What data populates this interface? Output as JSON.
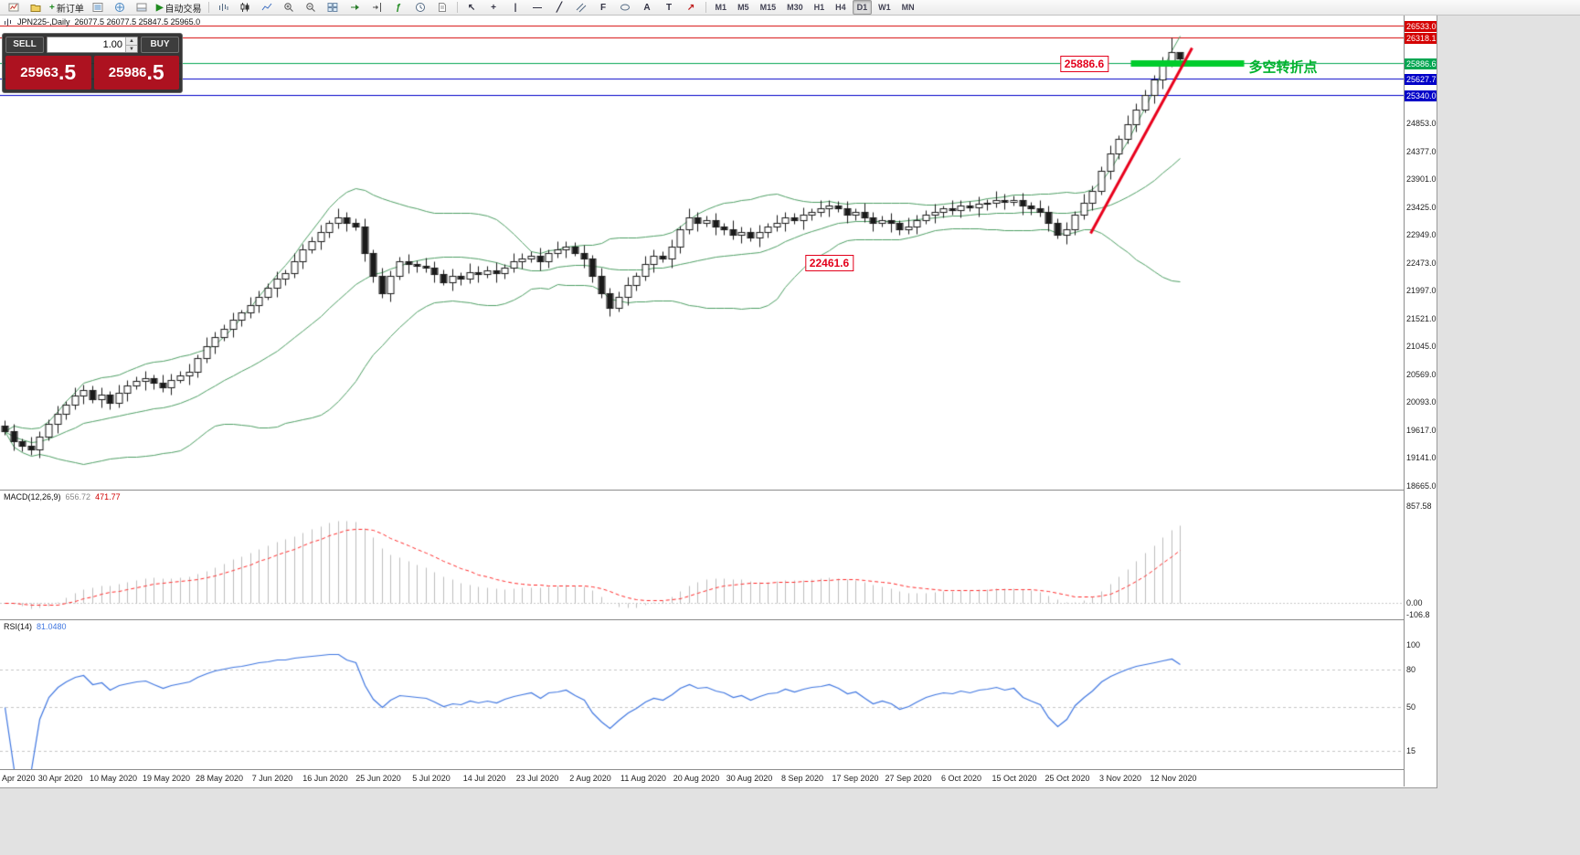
{
  "colors": {
    "toolbar_bg": "#f2f2f2",
    "chart_bg": "#ffffff",
    "candle_up_fill": "#ffffff",
    "candle_down_fill": "#1a1a1a",
    "candle_outline": "#1a1a1a",
    "bollinger": "#4d9e63",
    "resistance_red": "#d40000",
    "support_blue": "#0000c8",
    "signal_green": "#00a651",
    "bar_green": "#00cc2c",
    "trend_red": "#e8001c",
    "macd_hist": "#bdbdbd",
    "macd_signal": "#ff2a2a",
    "rsi_line": "#3f76e0",
    "level_dash": "#c4c4c4",
    "sell_bg": "#ad1220",
    "buy_bg": "#ad1220"
  },
  "toolbar": {
    "new_order_label": "新订单",
    "autotrading_label": "自动交易",
    "timeframes": [
      "M1",
      "M5",
      "M15",
      "M30",
      "H1",
      "H4",
      "D1",
      "W1",
      "MN"
    ],
    "active_timeframe": "D1",
    "glyphs": {
      "plus": "+",
      "play": "▶",
      "zoom_in": "+",
      "zoom_out": "−",
      "function": "ƒ",
      "cursor": "↖",
      "crosshair": "+",
      "vertical_line": "|",
      "horizontal_line": "—",
      "trend_line": "╱",
      "fibonacci": "F",
      "text": "A",
      "label": "T",
      "arrow": "↗"
    }
  },
  "chart": {
    "symbol_period": "JPN225-,Daily",
    "ohlc_text": "26077.5 26077.5 25847.5 25965.0"
  },
  "one_click": {
    "sell_label": "SELL",
    "buy_label": "BUY",
    "volume": "1.00",
    "sell_price_main": "25963",
    "sell_price_frac": ".5",
    "buy_price_main": "25986",
    "buy_price_frac": ".5"
  },
  "chart_data": {
    "type": "candlestick",
    "symbol": "JPN225-",
    "timeframe": "Daily",
    "ohlc_display": {
      "open": 26077.5,
      "high": 26077.5,
      "low": 25847.5,
      "close": 25965.0
    },
    "y_axis": {
      "min": 18600,
      "max": 26700,
      "tick_labels": [
        "24853.0",
        "24377.0",
        "23901.0",
        "23425.0",
        "22949.0",
        "22473.0",
        "21997.0",
        "21521.0",
        "21045.0",
        "20569.0",
        "20093.0",
        "19617.0",
        "19141.0",
        "18665.0"
      ]
    },
    "x_labels": [
      "Apr 2020",
      "30 Apr 2020",
      "10 May 2020",
      "19 May 2020",
      "28 May 2020",
      "7 Jun 2020",
      "16 Jun 2020",
      "25 Jun 2020",
      "5 Jul 2020",
      "14 Jul 2020",
      "23 Jul 2020",
      "2 Aug 2020",
      "11 Aug 2020",
      "20 Aug 2020",
      "30 Aug 2020",
      "8 Sep 2020",
      "17 Sep 2020",
      "27 Sep 2020",
      "6 Oct 2020",
      "15 Oct 2020",
      "25 Oct 2020",
      "3 Nov 2020",
      "12 Nov 2020"
    ],
    "candles": [
      [
        19700,
        19780,
        19540,
        19600
      ],
      [
        19600,
        19730,
        19270,
        19420
      ],
      [
        19420,
        19480,
        19250,
        19350
      ],
      [
        19350,
        19500,
        19200,
        19280
      ],
      [
        19280,
        19600,
        19150,
        19500
      ],
      [
        19500,
        19800,
        19440,
        19720
      ],
      [
        19720,
        20030,
        19570,
        19900
      ],
      [
        19900,
        20110,
        19800,
        20050
      ],
      [
        20050,
        20350,
        19970,
        20200
      ],
      [
        20200,
        20400,
        20070,
        20300
      ],
      [
        20300,
        20380,
        20090,
        20150
      ],
      [
        20150,
        20350,
        20000,
        20220
      ],
      [
        20220,
        20280,
        19980,
        20080
      ],
      [
        20080,
        20400,
        20000,
        20250
      ],
      [
        20250,
        20480,
        20120,
        20380
      ],
      [
        20380,
        20530,
        20320,
        20450
      ],
      [
        20450,
        20630,
        20300,
        20500
      ],
      [
        20500,
        20560,
        20320,
        20420
      ],
      [
        20420,
        20570,
        20270,
        20350
      ],
      [
        20350,
        20580,
        20220,
        20480
      ],
      [
        20480,
        20630,
        20420,
        20550
      ],
      [
        20550,
        20750,
        20400,
        20620
      ],
      [
        20620,
        20910,
        20520,
        20850
      ],
      [
        20850,
        21200,
        20770,
        21050
      ],
      [
        21050,
        21300,
        20920,
        21200
      ],
      [
        21200,
        21430,
        21140,
        21350
      ],
      [
        21350,
        21630,
        21200,
        21500
      ],
      [
        21500,
        21680,
        21400,
        21620
      ],
      [
        21620,
        21900,
        21540,
        21750
      ],
      [
        21750,
        22000,
        21620,
        21900
      ],
      [
        21900,
        22130,
        21840,
        22050
      ],
      [
        22050,
        22330,
        21900,
        22200
      ],
      [
        22200,
        22360,
        22100,
        22300
      ],
      [
        22300,
        22650,
        22220,
        22500
      ],
      [
        22500,
        22800,
        22370,
        22700
      ],
      [
        22700,
        22930,
        22640,
        22850
      ],
      [
        22850,
        23130,
        22700,
        23000
      ],
      [
        23000,
        23210,
        22900,
        23150
      ],
      [
        23150,
        23400,
        23070,
        23250
      ],
      [
        23250,
        23350,
        23020,
        23150
      ],
      [
        23150,
        23230,
        23040,
        23100
      ],
      [
        23100,
        23230,
        22500,
        22650
      ],
      [
        22650,
        22710,
        22150,
        22250
      ],
      [
        22250,
        22400,
        21870,
        21950
      ],
      [
        21950,
        22350,
        21820,
        22250
      ],
      [
        22250,
        22580,
        22190,
        22500
      ],
      [
        22500,
        22630,
        22300,
        22450
      ],
      [
        22450,
        22510,
        22320,
        22420
      ],
      [
        22420,
        22570,
        22320,
        22400
      ],
      [
        22400,
        22500,
        22150,
        22280
      ],
      [
        22280,
        22360,
        22090,
        22150
      ],
      [
        22150,
        22380,
        22000,
        22250
      ],
      [
        22250,
        22310,
        22100,
        22200
      ],
      [
        22200,
        22470,
        22120,
        22320
      ],
      [
        22320,
        22420,
        22150,
        22280
      ],
      [
        22280,
        22430,
        22220,
        22350
      ],
      [
        22350,
        22480,
        22150,
        22300
      ],
      [
        22300,
        22460,
        22200,
        22400
      ],
      [
        22400,
        22650,
        22320,
        22500
      ],
      [
        22500,
        22650,
        22370,
        22550
      ],
      [
        22550,
        22680,
        22490,
        22600
      ],
      [
        22600,
        22730,
        22350,
        22500
      ],
      [
        22500,
        22710,
        22400,
        22650
      ],
      [
        22650,
        22850,
        22570,
        22700
      ],
      [
        22700,
        22850,
        22570,
        22750
      ],
      [
        22750,
        22830,
        22590,
        22650
      ],
      [
        22650,
        22780,
        22400,
        22550
      ],
      [
        22550,
        22610,
        22150,
        22250
      ],
      [
        22250,
        22400,
        21870,
        21950
      ],
      [
        21950,
        22050,
        21570,
        21700
      ],
      [
        21700,
        21980,
        21640,
        21900
      ],
      [
        21900,
        22230,
        21750,
        22100
      ],
      [
        22100,
        22310,
        22000,
        22250
      ],
      [
        22250,
        22600,
        22170,
        22450
      ],
      [
        22450,
        22700,
        22320,
        22600
      ],
      [
        22600,
        22680,
        22490,
        22550
      ],
      [
        22550,
        22880,
        22400,
        22750
      ],
      [
        22750,
        23110,
        22650,
        23050
      ],
      [
        23050,
        23400,
        22970,
        23250
      ],
      [
        23250,
        23350,
        23020,
        23150
      ],
      [
        23150,
        23280,
        23090,
        23200
      ],
      [
        23200,
        23330,
        22950,
        23100
      ],
      [
        23100,
        23160,
        22950,
        23050
      ],
      [
        23050,
        23200,
        22870,
        22950
      ],
      [
        22950,
        23100,
        22820,
        23000
      ],
      [
        23000,
        23080,
        22840,
        22900
      ],
      [
        22900,
        23130,
        22750,
        23000
      ],
      [
        23000,
        23160,
        22900,
        23100
      ],
      [
        23100,
        23300,
        23020,
        23150
      ],
      [
        23150,
        23350,
        23020,
        23250
      ],
      [
        23250,
        23330,
        23140,
        23200
      ],
      [
        23200,
        23430,
        23050,
        23300
      ],
      [
        23300,
        23410,
        23200,
        23350
      ],
      [
        23350,
        23550,
        23270,
        23400
      ],
      [
        23400,
        23550,
        23270,
        23450
      ],
      [
        23450,
        23530,
        23340,
        23400
      ],
      [
        23400,
        23530,
        23150,
        23300
      ],
      [
        23300,
        23410,
        23200,
        23350
      ],
      [
        23350,
        23500,
        23170,
        23250
      ],
      [
        23250,
        23350,
        23020,
        23150
      ],
      [
        23150,
        23280,
        23090,
        23200
      ],
      [
        23200,
        23330,
        23000,
        23150
      ],
      [
        23150,
        23210,
        22950,
        23050
      ],
      [
        23050,
        23250,
        22970,
        23100
      ],
      [
        23100,
        23300,
        22970,
        23200
      ],
      [
        23200,
        23380,
        23140,
        23300
      ],
      [
        23300,
        23480,
        23150,
        23350
      ],
      [
        23350,
        23460,
        23250,
        23400
      ],
      [
        23400,
        23550,
        23300,
        23380
      ],
      [
        23380,
        23550,
        23250,
        23450
      ],
      [
        23450,
        23530,
        23360,
        23420
      ],
      [
        23420,
        23610,
        23270,
        23480
      ],
      [
        23480,
        23560,
        23380,
        23500
      ],
      [
        23500,
        23700,
        23420,
        23550
      ],
      [
        23550,
        23650,
        23390,
        23520
      ],
      [
        23520,
        23630,
        23460,
        23550
      ],
      [
        23550,
        23680,
        23300,
        23450
      ],
      [
        23450,
        23510,
        23300,
        23400
      ],
      [
        23400,
        23550,
        23270,
        23350
      ],
      [
        23350,
        23450,
        23020,
        23150
      ],
      [
        23150,
        23230,
        22890,
        22950
      ],
      [
        22950,
        23180,
        22800,
        23050
      ],
      [
        23050,
        23360,
        22950,
        23300
      ],
      [
        23300,
        23650,
        23220,
        23500
      ],
      [
        23500,
        23800,
        23370,
        23700
      ],
      [
        23700,
        24130,
        23640,
        24050
      ],
      [
        24050,
        24480,
        23900,
        24350
      ],
      [
        24350,
        24660,
        24250,
        24600
      ],
      [
        24600,
        25000,
        24520,
        24850
      ],
      [
        24850,
        25200,
        24720,
        25100
      ],
      [
        25100,
        25430,
        25040,
        25350
      ],
      [
        25350,
        25680,
        25200,
        25600
      ],
      [
        25600,
        25990,
        25450,
        25900
      ],
      [
        25900,
        26318,
        25820,
        26077
      ],
      [
        26077,
        26077,
        25847,
        25965
      ]
    ],
    "indicators": {
      "bollinger": {
        "period": 20,
        "deviation": 2
      },
      "macd": {
        "label": "MACD(12,26,9)",
        "value_main": "656.72",
        "value_signal": "471.77",
        "range": [
          -150,
          1000
        ],
        "axis_ticks": [
          {
            "label": "857.58",
            "value": 857.58
          },
          {
            "label": "0.00",
            "value": 0
          },
          {
            "label": "-106.8",
            "value": -106.8
          }
        ]
      },
      "rsi": {
        "label": "RSI(14)",
        "value": "81.0480",
        "period": 14,
        "levels": [
          80,
          50,
          15
        ],
        "range": [
          0,
          120
        ],
        "axis_ticks": [
          {
            "label": "100",
            "value": 100
          },
          {
            "label": "80",
            "value": 80
          },
          {
            "label": "50",
            "value": 50
          },
          {
            "label": "15",
            "value": 15
          }
        ]
      }
    },
    "price_lines": [
      {
        "label": "26533.0",
        "price": 26533.0,
        "line_color": "#d40000",
        "tag_bg": "#d40000"
      },
      {
        "label": "26318.1",
        "price": 26318.1,
        "line_color": "#d40000",
        "tag_bg": "#d40000"
      },
      {
        "label": "25886.6",
        "price": 25886.6,
        "line_color": "#00a651",
        "tag_bg": "#00a651"
      },
      {
        "label": "25627.7",
        "price": 25627.7,
        "line_color": "#0000c8",
        "tag_bg": "#0000c8"
      },
      {
        "label": "25340.0",
        "price": 25340.0,
        "line_color": "#0000c8",
        "tag_bg": "#0000c8"
      }
    ],
    "objects": {
      "thick_green_bar": {
        "from_index": 128.3,
        "to_index": 141.3,
        "price": 25886.6,
        "thickness": 7
      },
      "red_trendline": {
        "from_index": 123.8,
        "from_price": 22990,
        "to_index": 135.3,
        "to_price": 26160,
        "width": 3
      },
      "annotations": [
        {
          "text": "25886.6",
          "x_index": 123,
          "price": 25890,
          "style": "red-box"
        },
        {
          "text": "22461.6",
          "x_index": 94,
          "price": 22480,
          "style": "red-box"
        },
        {
          "text": "多空转折点",
          "x_index": 141.8,
          "price": 25840,
          "style": "green-text"
        }
      ]
    }
  }
}
